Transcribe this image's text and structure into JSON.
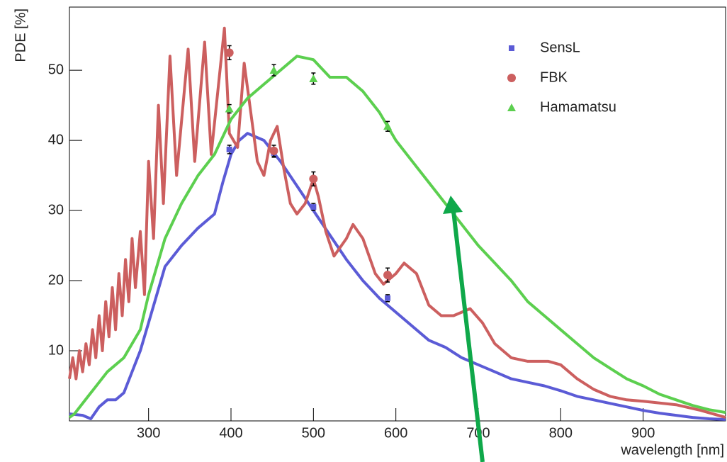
{
  "chart_data": {
    "type": "line",
    "x_label": "wavelength [nm]",
    "y_label": "PDE [%]",
    "xlim": [
      204,
      1000
    ],
    "ylim": [
      0,
      59
    ],
    "xticks": [
      300,
      400,
      500,
      600,
      700,
      800,
      900
    ],
    "yticks": [
      10,
      20,
      30,
      40,
      50
    ],
    "legend": "upper right",
    "series": [
      {
        "name": "SensL",
        "color": "#5b5bd6",
        "marker": "square",
        "x": [
          204,
          220,
          230,
          240,
          250,
          260,
          270,
          280,
          290,
          300,
          320,
          340,
          360,
          380,
          390,
          400,
          410,
          420,
          440,
          460,
          480,
          500,
          520,
          540,
          560,
          580,
          600,
          620,
          640,
          660,
          680,
          700,
          720,
          740,
          760,
          780,
          800,
          820,
          840,
          860,
          880,
          900,
          920,
          940,
          960,
          980,
          1000
        ],
        "values": [
          1,
          0.8,
          0.3,
          2,
          3,
          3,
          4,
          7,
          10,
          14,
          22,
          25,
          27.5,
          29.5,
          34,
          38,
          40,
          41,
          40,
          37,
          33.5,
          30,
          26.5,
          23,
          20,
          17.5,
          15.5,
          13.5,
          11.5,
          10.5,
          9,
          8,
          7,
          6,
          5.5,
          5,
          4.3,
          3.5,
          3,
          2.5,
          2,
          1.5,
          1.1,
          0.8,
          0.5,
          0.3,
          0.2
        ],
        "points": {
          "x": [
            398,
            452,
            500,
            590
          ],
          "values": [
            38.7,
            38.2,
            30.5,
            17.5
          ],
          "errors": [
            0.6,
            0.6,
            0.5,
            0.5
          ]
        }
      },
      {
        "name": "FBK",
        "color": "#cc5f5f",
        "marker": "circle",
        "x": [
          204,
          208,
          212,
          216,
          220,
          224,
          228,
          232,
          236,
          240,
          244,
          248,
          252,
          256,
          260,
          264,
          268,
          272,
          276,
          280,
          284,
          290,
          295,
          300,
          306,
          312,
          318,
          326,
          334,
          348,
          356,
          368,
          376,
          392,
          398,
          408,
          416,
          424,
          432,
          440,
          448,
          456,
          464,
          472,
          480,
          490,
          500,
          506,
          515,
          525,
          540,
          548,
          560,
          575,
          585,
          600,
          610,
          625,
          640,
          655,
          670,
          690,
          705,
          720,
          740,
          760,
          775,
          785,
          800,
          820,
          840,
          860,
          880,
          900,
          940,
          970,
          1000
        ],
        "values": [
          6,
          9,
          6,
          10,
          7,
          11,
          8,
          13,
          9,
          15,
          10,
          17,
          12,
          19,
          13,
          21,
          15,
          23,
          17,
          26,
          19,
          27,
          18,
          37,
          26,
          45,
          31,
          52,
          35,
          53,
          37,
          54,
          38,
          56,
          41,
          39,
          51,
          44,
          37,
          35,
          40,
          42,
          36,
          31,
          29.5,
          31,
          34.5,
          32,
          27,
          23.5,
          26,
          28,
          26,
          21,
          19.5,
          21,
          22.5,
          21,
          16.5,
          15,
          15,
          16,
          14,
          11,
          9,
          8.5,
          8.5,
          8.5,
          8,
          6,
          4.5,
          3.5,
          3,
          2.8,
          2.3,
          1.5,
          0.5
        ],
        "points": {
          "x": [
            398,
            452,
            500,
            590
          ],
          "values": [
            52.5,
            38.5,
            34.5,
            20.8
          ],
          "errors": [
            1,
            0.8,
            1,
            1
          ]
        }
      },
      {
        "name": "Hamamatsu",
        "color": "#5ccf4f",
        "marker": "triangle",
        "x": [
          204,
          210,
          230,
          250,
          270,
          290,
          300,
          320,
          340,
          360,
          380,
          400,
          420,
          440,
          460,
          480,
          500,
          520,
          540,
          560,
          580,
          600,
          620,
          640,
          660,
          680,
          700,
          720,
          740,
          760,
          780,
          800,
          820,
          840,
          860,
          880,
          900,
          920,
          940,
          960,
          980,
          1000
        ],
        "values": [
          0.5,
          1,
          4,
          7,
          9,
          13,
          18,
          26,
          31,
          35,
          38,
          43,
          46,
          48,
          50,
          52,
          51.5,
          49,
          49,
          47,
          44,
          40,
          37,
          34,
          31,
          28,
          25,
          22.5,
          20,
          17,
          15,
          13,
          11,
          9,
          7.5,
          6,
          5,
          3.8,
          3,
          2.2,
          1.6,
          1.2
        ],
        "points": {
          "x": [
            398,
            452,
            500,
            590
          ],
          "values": [
            44.5,
            50,
            48.8,
            42
          ],
          "errors": [
            0.6,
            0.8,
            0.8,
            0.7
          ]
        }
      }
    ]
  }
}
